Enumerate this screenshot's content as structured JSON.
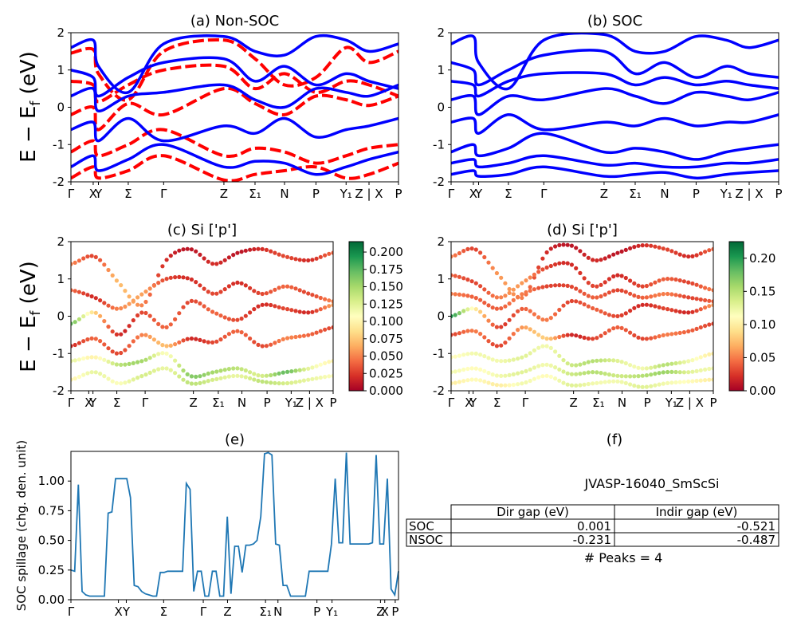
{
  "labels": {
    "ylabel_main": "E − E",
    "ylabel_sub": "f",
    "ylabel_tail": " (eV)",
    "spillage_ylabel": "SOC spillage (chg. den. unit)"
  },
  "colors": {
    "nsoc": "#ff0000",
    "soc": "#0000ff",
    "spillage": "#1f77b4",
    "cmap_rdylgn": [
      "#a50026",
      "#d73027",
      "#f46d43",
      "#fdae61",
      "#fee08b",
      "#ffffbf",
      "#d9ef8b",
      "#a6d96a",
      "#66bd63",
      "#1a9850",
      "#006837"
    ]
  },
  "chart_data": [
    {
      "id": "a",
      "type": "line",
      "title": "(a) Non-SOC",
      "ylim": [
        -2,
        2
      ],
      "yticks": [
        -2,
        -1,
        0,
        1,
        2
      ],
      "xtick_labels": [
        "Γ",
        "X",
        "Y",
        "Σ",
        "Γ",
        "Z",
        "Σ₁",
        "N",
        "P",
        "Y₁",
        "Z | X",
        "P"
      ],
      "series": [
        {
          "style": "dashed",
          "color": "#ff0000",
          "values": [
            1.45,
            1.55,
            0.9,
            0.2,
            1.5,
            1.8,
            1.3,
            0.6,
            0.8,
            1.6,
            1.2,
            1.5
          ]
        },
        {
          "style": "dashed",
          "color": "#ff0000",
          "values": [
            0.7,
            0.6,
            0.15,
            0.6,
            1.0,
            1.1,
            0.5,
            0.9,
            0.4,
            0.7,
            0.6,
            0.3
          ]
        },
        {
          "style": "dashed",
          "color": "#ff0000",
          "values": [
            -0.2,
            0.0,
            -0.6,
            0.1,
            -0.2,
            0.5,
            0.1,
            -0.2,
            0.3,
            0.2,
            0.05,
            0.3
          ]
        },
        {
          "style": "dashed",
          "color": "#ff0000",
          "values": [
            -1.2,
            -0.9,
            -1.3,
            -1.0,
            -0.6,
            -1.3,
            -1.1,
            -1.2,
            -1.5,
            -1.3,
            -1.1,
            -1.0
          ]
        },
        {
          "style": "dashed",
          "color": "#ff0000",
          "values": [
            -1.9,
            -1.6,
            -1.9,
            -1.7,
            -1.3,
            -1.95,
            -1.8,
            -1.7,
            -1.6,
            -1.9,
            -1.8,
            -1.5
          ]
        },
        {
          "style": "solid",
          "color": "#0000ff",
          "values": [
            1.6,
            1.8,
            1.1,
            0.4,
            1.7,
            1.9,
            1.5,
            1.4,
            1.9,
            1.8,
            1.5,
            1.7
          ]
        },
        {
          "style": "solid",
          "color": "#0000ff",
          "values": [
            1.0,
            0.8,
            0.3,
            0.8,
            1.2,
            1.3,
            0.7,
            1.1,
            0.6,
            0.9,
            0.7,
            0.5
          ]
        },
        {
          "style": "solid",
          "color": "#0000ff",
          "values": [
            0.3,
            0.5,
            -0.1,
            0.3,
            0.4,
            0.6,
            0.2,
            0.0,
            0.5,
            0.4,
            0.3,
            0.6
          ]
        },
        {
          "style": "solid",
          "color": "#0000ff",
          "values": [
            -0.6,
            -0.4,
            -0.9,
            -0.3,
            -0.9,
            -0.5,
            -0.7,
            -0.3,
            -0.8,
            -0.6,
            -0.5,
            -0.3
          ]
        },
        {
          "style": "solid",
          "color": "#0000ff",
          "values": [
            -1.6,
            -1.3,
            -1.7,
            -1.4,
            -1.0,
            -1.6,
            -1.45,
            -1.5,
            -1.8,
            -1.6,
            -1.4,
            -1.2
          ]
        }
      ]
    },
    {
      "id": "b",
      "type": "line",
      "title": "(b) SOC",
      "ylim": [
        -2,
        2
      ],
      "yticks": [
        -2,
        -1,
        0,
        1,
        2
      ],
      "xtick_labels": [
        "Γ",
        "X",
        "Y",
        "Σ",
        "Γ",
        "Z",
        "Σ₁",
        "N",
        "P",
        "Y₁",
        "Z | X",
        "P"
      ],
      "series": [
        {
          "style": "solid",
          "color": "#0000ff",
          "values": [
            1.7,
            1.9,
            1.2,
            0.5,
            1.8,
            1.95,
            1.5,
            1.5,
            1.9,
            1.8,
            1.6,
            1.8
          ]
        },
        {
          "style": "solid",
          "color": "#0000ff",
          "values": [
            1.2,
            1.0,
            0.6,
            1.0,
            1.4,
            1.5,
            0.9,
            1.2,
            0.8,
            1.1,
            0.9,
            0.8
          ]
        },
        {
          "style": "solid",
          "color": "#0000ff",
          "values": [
            0.7,
            0.6,
            0.3,
            0.7,
            0.9,
            0.9,
            0.6,
            0.8,
            0.6,
            0.7,
            0.6,
            0.5
          ]
        },
        {
          "style": "solid",
          "color": "#0000ff",
          "values": [
            0.2,
            0.3,
            -0.2,
            0.3,
            0.2,
            0.5,
            0.3,
            0.1,
            0.4,
            0.3,
            0.2,
            0.4
          ]
        },
        {
          "style": "solid",
          "color": "#0000ff",
          "values": [
            -0.4,
            -0.3,
            -0.7,
            -0.2,
            -0.6,
            -0.4,
            -0.5,
            -0.3,
            -0.5,
            -0.4,
            -0.4,
            -0.2
          ]
        },
        {
          "style": "solid",
          "color": "#0000ff",
          "values": [
            -1.2,
            -1.0,
            -1.3,
            -1.1,
            -0.7,
            -1.2,
            -1.1,
            -1.2,
            -1.4,
            -1.2,
            -1.1,
            -1.0
          ]
        },
        {
          "style": "solid",
          "color": "#0000ff",
          "values": [
            -1.5,
            -1.4,
            -1.6,
            -1.5,
            -1.3,
            -1.55,
            -1.5,
            -1.6,
            -1.6,
            -1.5,
            -1.5,
            -1.4
          ]
        },
        {
          "style": "solid",
          "color": "#0000ff",
          "values": [
            -1.8,
            -1.7,
            -1.85,
            -1.8,
            -1.6,
            -1.85,
            -1.8,
            -1.75,
            -1.9,
            -1.8,
            -1.75,
            -1.7
          ]
        }
      ]
    },
    {
      "id": "c",
      "type": "scatter",
      "title": "(c)  Si ['p']",
      "ylim": [
        -2,
        2
      ],
      "yticks": [
        -2,
        -1,
        0,
        1,
        2
      ],
      "xtick_labels": [
        "Γ",
        "X",
        "Y",
        "Σ",
        "Γ",
        "Z",
        "Σ₁",
        "N",
        "P",
        "Y₁",
        "Z | X",
        "P"
      ],
      "colorbar": {
        "min": 0.0,
        "max": 0.215,
        "ticks": [
          "0.000",
          "0.025",
          "0.050",
          "0.075",
          "0.100",
          "0.125",
          "0.150",
          "0.175",
          "0.200"
        ]
      },
      "bands": [
        {
          "values": [
            1.4,
            1.6,
            0.9,
            0.3,
            1.5,
            1.8,
            1.4,
            1.7,
            1.8,
            1.6,
            1.5,
            1.7
          ],
          "weight": [
            0.05,
            0.03,
            0.07,
            0.05,
            0.02,
            0.01,
            0.02,
            0.01,
            0.02,
            0.03,
            0.02,
            0.04
          ]
        },
        {
          "values": [
            0.7,
            0.5,
            0.2,
            0.6,
            1.0,
            1.0,
            0.6,
            0.9,
            0.6,
            0.8,
            0.6,
            0.4
          ],
          "weight": [
            0.04,
            0.02,
            0.05,
            0.06,
            0.03,
            0.02,
            0.03,
            0.02,
            0.03,
            0.04,
            0.03,
            0.05
          ]
        },
        {
          "values": [
            -0.2,
            0.1,
            -0.5,
            0.1,
            -0.3,
            0.4,
            0.1,
            -0.1,
            0.3,
            0.2,
            0.1,
            0.3
          ],
          "weight": [
            0.17,
            0.08,
            0.02,
            0.03,
            0.04,
            0.03,
            0.04,
            0.03,
            0.02,
            0.03,
            0.02,
            0.06
          ]
        },
        {
          "values": [
            -0.8,
            -0.6,
            -1.0,
            -0.5,
            -0.8,
            -0.6,
            -0.7,
            -0.4,
            -0.8,
            -0.6,
            -0.5,
            -0.3
          ],
          "weight": [
            0.02,
            0.04,
            0.03,
            0.05,
            0.07,
            0.02,
            0.03,
            0.04,
            0.03,
            0.05,
            0.04,
            0.03
          ]
        },
        {
          "values": [
            -1.2,
            -1.1,
            -1.3,
            -1.2,
            -1.0,
            -1.6,
            -1.5,
            -1.4,
            -1.6,
            -1.5,
            -1.4,
            -1.2
          ],
          "weight": [
            0.12,
            0.1,
            0.14,
            0.15,
            0.11,
            0.16,
            0.15,
            0.14,
            0.13,
            0.17,
            0.12,
            0.1
          ]
        },
        {
          "values": [
            -1.7,
            -1.5,
            -1.8,
            -1.6,
            -1.4,
            -1.8,
            -1.7,
            -1.6,
            -1.75,
            -1.8,
            -1.7,
            -1.6
          ],
          "weight": [
            0.1,
            0.12,
            0.11,
            0.13,
            0.12,
            0.14,
            0.13,
            0.12,
            0.14,
            0.13,
            0.12,
            0.11
          ]
        }
      ]
    },
    {
      "id": "d",
      "type": "scatter",
      "title": "(d) Si ['p']",
      "ylim": [
        -2,
        2
      ],
      "yticks": [
        -2,
        -1,
        0,
        1,
        2
      ],
      "xtick_labels": [
        "Γ",
        "X",
        "Y",
        "Σ",
        "Γ",
        "Z",
        "Σ₁",
        "N",
        "P",
        "Y₁",
        "Z | X",
        "P"
      ],
      "colorbar": {
        "min": 0.0,
        "max": 0.225,
        "ticks": [
          "0.00",
          "0.05",
          "0.10",
          "0.15",
          "0.20"
        ]
      },
      "bands": [
        {
          "values": [
            1.6,
            1.8,
            1.1,
            0.5,
            1.7,
            1.9,
            1.5,
            1.7,
            1.9,
            1.8,
            1.6,
            1.8
          ],
          "weight": [
            0.05,
            0.03,
            0.06,
            0.05,
            0.02,
            0.01,
            0.02,
            0.01,
            0.02,
            0.03,
            0.02,
            0.04
          ]
        },
        {
          "values": [
            1.1,
            0.9,
            0.5,
            0.9,
            1.3,
            1.4,
            0.8,
            1.1,
            0.8,
            1.0,
            0.9,
            0.7
          ],
          "weight": [
            0.04,
            0.03,
            0.05,
            0.06,
            0.03,
            0.02,
            0.03,
            0.02,
            0.03,
            0.04,
            0.03,
            0.05
          ]
        },
        {
          "values": [
            0.6,
            0.5,
            0.2,
            0.6,
            0.8,
            0.8,
            0.5,
            0.7,
            0.5,
            0.6,
            0.5,
            0.4
          ],
          "weight": [
            0.05,
            0.04,
            0.04,
            0.05,
            0.03,
            0.03,
            0.04,
            0.03,
            0.04,
            0.05,
            0.03,
            0.04
          ]
        },
        {
          "values": [
            0.0,
            0.2,
            -0.3,
            0.2,
            -0.1,
            0.4,
            0.2,
            0.0,
            0.3,
            0.2,
            0.1,
            0.3
          ],
          "weight": [
            0.2,
            0.1,
            0.03,
            0.04,
            0.05,
            0.03,
            0.04,
            0.03,
            0.02,
            0.03,
            0.02,
            0.06
          ]
        },
        {
          "values": [
            -0.5,
            -0.4,
            -0.8,
            -0.3,
            -0.6,
            -0.5,
            -0.6,
            -0.3,
            -0.6,
            -0.5,
            -0.4,
            -0.2
          ],
          "weight": [
            0.03,
            0.05,
            0.03,
            0.06,
            0.08,
            0.02,
            0.03,
            0.04,
            0.03,
            0.05,
            0.04,
            0.03
          ]
        },
        {
          "values": [
            -1.1,
            -1.0,
            -1.2,
            -1.1,
            -0.8,
            -1.3,
            -1.2,
            -1.2,
            -1.4,
            -1.3,
            -1.2,
            -1.0
          ],
          "weight": [
            0.11,
            0.12,
            0.12,
            0.13,
            0.12,
            0.14,
            0.15,
            0.13,
            0.12,
            0.15,
            0.12,
            0.1
          ]
        },
        {
          "values": [
            -1.5,
            -1.4,
            -1.6,
            -1.5,
            -1.3,
            -1.55,
            -1.5,
            -1.6,
            -1.6,
            -1.5,
            -1.5,
            -1.4
          ],
          "weight": [
            0.12,
            0.11,
            0.12,
            0.13,
            0.12,
            0.14,
            0.15,
            0.14,
            0.15,
            0.16,
            0.13,
            0.12
          ]
        },
        {
          "values": [
            -1.8,
            -1.7,
            -1.85,
            -1.8,
            -1.6,
            -1.85,
            -1.8,
            -1.75,
            -1.9,
            -1.8,
            -1.75,
            -1.7
          ],
          "weight": [
            0.1,
            0.11,
            0.1,
            0.12,
            0.11,
            0.13,
            0.12,
            0.12,
            0.13,
            0.12,
            0.11,
            0.1
          ]
        }
      ]
    },
    {
      "id": "e",
      "type": "line",
      "title": "(e)",
      "ylabel": "SOC spillage (chg. den. unit)",
      "ylim": [
        0,
        1.25
      ],
      "yticks": [
        "0.00",
        "0.25",
        "0.50",
        "0.75",
        "1.00"
      ],
      "xtick_labels": [
        "Γ",
        "X",
        "Y",
        "Σ",
        "Γ",
        "Z",
        "Σ₁",
        "N",
        "P",
        "Y₁",
        "Z",
        "X",
        "P"
      ],
      "series": [
        {
          "name": "SOC spillage",
          "values": [
            0.25,
            0.24,
            0.97,
            0.07,
            0.04,
            0.03,
            0.03,
            0.03,
            0.03,
            0.03,
            0.73,
            0.74,
            1.02,
            1.02,
            1.02,
            1.02,
            0.86,
            0.12,
            0.11,
            0.07,
            0.05,
            0.04,
            0.03,
            0.03,
            0.23,
            0.23,
            0.24,
            0.24,
            0.24,
            0.24,
            0.24,
            0.98,
            0.93,
            0.07,
            0.24,
            0.24,
            0.03,
            0.03,
            0.24,
            0.24,
            0.03,
            0.03,
            0.7,
            0.05,
            0.45,
            0.45,
            0.23,
            0.46,
            0.46,
            0.47,
            0.5,
            0.7,
            1.23,
            1.24,
            1.22,
            0.47,
            0.46,
            0.12,
            0.12,
            0.03,
            0.03,
            0.03,
            0.03,
            0.03,
            0.24,
            0.24,
            0.24,
            0.24,
            0.24,
            0.24,
            0.47,
            1.02,
            0.48,
            0.48,
            1.24,
            0.47,
            0.47,
            0.47,
            0.47,
            0.47,
            0.47,
            0.48,
            1.22,
            0.47,
            0.47,
            1.02,
            0.09,
            0.04,
            0.24
          ]
        }
      ]
    }
  ],
  "panel_f": {
    "title": "(f)",
    "material": "JVASP-16040_SmScSi",
    "table": {
      "headers": [
        "Dir gap (eV)",
        "Indir gap (eV)"
      ],
      "rows": [
        {
          "label": "SOC",
          "values": [
            "0.001",
            "-0.521"
          ]
        },
        {
          "label": "NSOC",
          "values": [
            "-0.231",
            "-0.487"
          ]
        }
      ]
    },
    "peaks": "# Peaks = 4"
  }
}
